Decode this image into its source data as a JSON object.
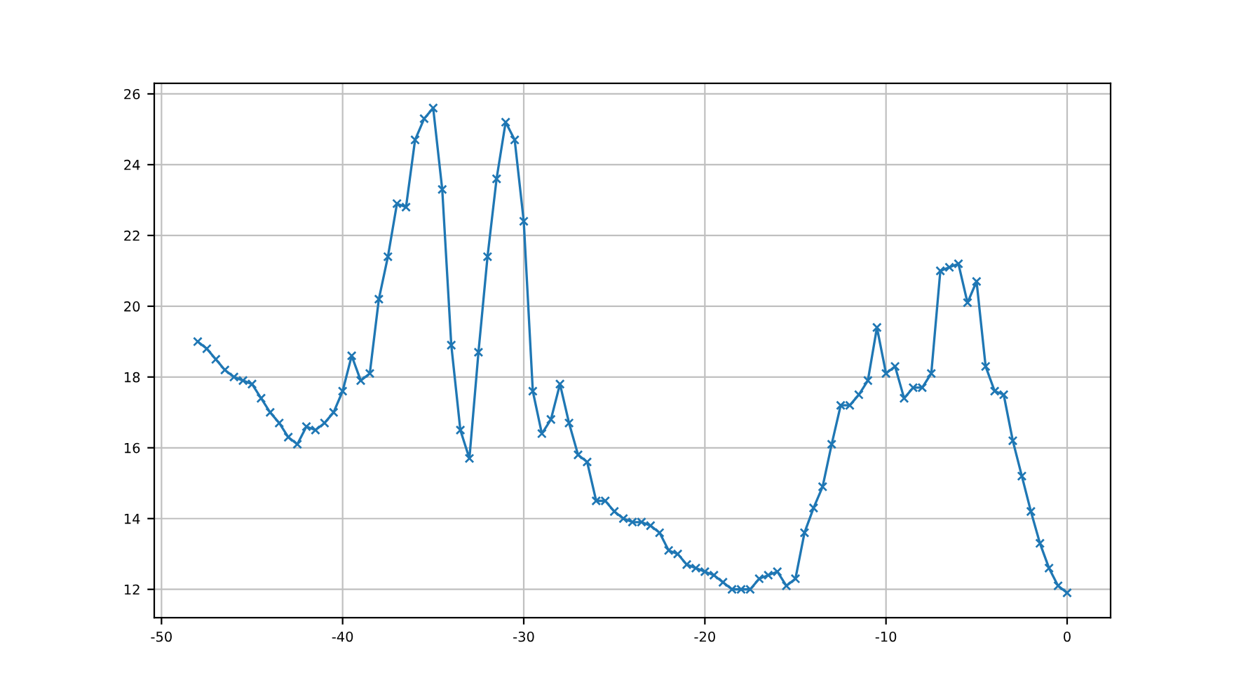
{
  "chart_data": {
    "type": "line",
    "x": [
      -48,
      -47.5,
      -47,
      -46.5,
      -46,
      -45.5,
      -45,
      -44.5,
      -44,
      -43.5,
      -43,
      -42.5,
      -42,
      -41.5,
      -41,
      -40.5,
      -40,
      -39.5,
      -39,
      -38.5,
      -38,
      -37.5,
      -37,
      -36.5,
      -36,
      -35.5,
      -35,
      -34.5,
      -34,
      -33.5,
      -33,
      -32.5,
      -32,
      -31.5,
      -31,
      -30.5,
      -30,
      -29.5,
      -29,
      -28.5,
      -28,
      -27.5,
      -27,
      -26.5,
      -26,
      -25.5,
      -25,
      -24.5,
      -24,
      -23.5,
      -23,
      -22.5,
      -22,
      -21.5,
      -21,
      -20.5,
      -20,
      -19.5,
      -19,
      -18.5,
      -18,
      -17.5,
      -17,
      -16.5,
      -16,
      -15.5,
      -15,
      -14.5,
      -14,
      -13.5,
      -13,
      -12.5,
      -12,
      -11.5,
      -11,
      -10.5,
      -10,
      -9.5,
      -9,
      -8.5,
      -8,
      -7.5,
      -7,
      -6.5,
      -6,
      -5.5,
      -5,
      -4.5,
      -4,
      -3.5,
      -3,
      -2.5,
      -2,
      -1.5,
      -1,
      -0.5,
      0
    ],
    "series": [
      {
        "color": "#1f77b4",
        "values": [
          19.0,
          18.8,
          18.5,
          18.2,
          18.0,
          17.9,
          17.8,
          17.4,
          17.0,
          16.7,
          16.3,
          16.1,
          16.6,
          16.5,
          16.7,
          17.0,
          17.6,
          18.6,
          17.9,
          18.1,
          20.2,
          21.4,
          22.9,
          22.8,
          24.7,
          25.3,
          25.6,
          23.3,
          18.9,
          16.5,
          15.7,
          18.7,
          21.4,
          23.6,
          25.2,
          24.7,
          22.4,
          17.6,
          16.4,
          16.8,
          17.8,
          16.7,
          15.8,
          15.6,
          14.5,
          14.5,
          14.2,
          14.0,
          13.9,
          13.9,
          13.8,
          13.6,
          13.1,
          13.0,
          12.7,
          12.6,
          12.5,
          12.4,
          12.2,
          12.0,
          12.0,
          12.0,
          12.3,
          12.4,
          12.5,
          12.1,
          12.3,
          13.6,
          14.3,
          14.9,
          16.1,
          17.2,
          17.2,
          17.5,
          17.9,
          19.4,
          18.1,
          18.3,
          17.4,
          17.7,
          17.7,
          18.1,
          21.0,
          21.1,
          21.2,
          20.1,
          20.7,
          18.3,
          17.6,
          17.5,
          16.2,
          15.2,
          14.2,
          13.3,
          12.6,
          12.1,
          11.9
        ]
      }
    ],
    "xlim": [
      -50.4,
      2.4
    ],
    "xticks": [
      -50,
      -40,
      -30,
      -20,
      -10,
      0
    ],
    "ylim": [
      11.2,
      26.3
    ],
    "yticks": [
      12,
      14,
      16,
      18,
      20,
      22,
      24,
      26
    ],
    "grid": true,
    "marker": "cross",
    "line_style": "solid"
  }
}
